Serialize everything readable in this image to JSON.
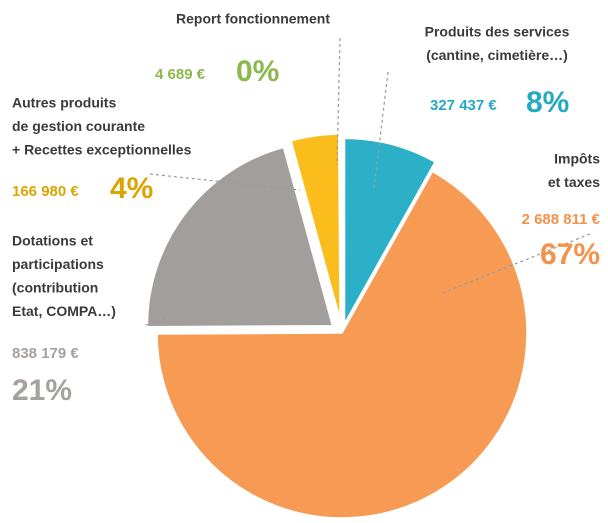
{
  "chart_data": {
    "type": "pie",
    "categories": [
      [
        "Produits des services",
        "(cantine, cimetière…)"
      ],
      [
        "Impôts",
        "et taxes"
      ],
      [
        "Dotations et",
        "participations",
        "(contribution",
        "Etat, COMPA…)"
      ],
      [
        "Autres produits",
        "de gestion courante",
        "+ Recettes exceptionnelles"
      ],
      [
        "Report fonctionnement"
      ]
    ],
    "values": [
      327437,
      2688811,
      838179,
      166980,
      4689
    ],
    "value_labels": [
      "327 437 €",
      "2 688 811 €",
      "838 179 €",
      "166 980 €",
      "4 689 €"
    ],
    "percent_labels": [
      "8%",
      "67%",
      "21%",
      "4%",
      "0%"
    ],
    "colors": [
      "#2bb0c8",
      "#f79a54",
      "#a29e9c",
      "#fbbd1c",
      "#8dbb4c"
    ],
    "label_colors": [
      "#24a9c3",
      "#f4924a",
      "#a6a19d",
      "#dba400",
      "#8cb94d"
    ]
  }
}
